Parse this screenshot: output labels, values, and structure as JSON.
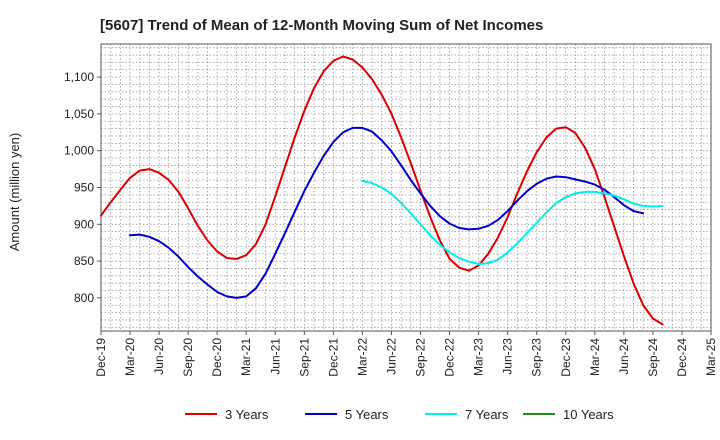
{
  "chart_data": {
    "type": "line",
    "title": "[5607]  Trend of Mean of 12-Month Moving Sum of Net Incomes",
    "xlabel": "",
    "ylabel": "Amount (million yen)",
    "ylim": [
      755,
      1145
    ],
    "yticks": [
      800,
      850,
      900,
      950,
      1000,
      1050,
      1100
    ],
    "ytick_labels": [
      "800",
      "850",
      "900",
      "950",
      "1,000",
      "1,050",
      "1,100"
    ],
    "x_ticks": [
      "Dec-19",
      "Mar-20",
      "Jun-20",
      "Sep-20",
      "Dec-20",
      "Mar-21",
      "Jun-21",
      "Sep-21",
      "Dec-21",
      "Mar-22",
      "Jun-22",
      "Sep-22",
      "Dec-22",
      "Mar-23",
      "Jun-23",
      "Sep-23",
      "Dec-23",
      "Mar-24",
      "Jun-24",
      "Sep-24",
      "Dec-24",
      "Mar-25"
    ],
    "grid": true,
    "legend_position": "bottom",
    "series": [
      {
        "name": "3 Years",
        "color": "#dd0000",
        "start_index": 0,
        "values": [
          912,
          930,
          947,
          963,
          973,
          975,
          970,
          960,
          944,
          922,
          898,
          878,
          863,
          854,
          853,
          858,
          873,
          900,
          938,
          978,
          1018,
          1054,
          1085,
          1108,
          1122,
          1128,
          1124,
          1113,
          1097,
          1076,
          1050,
          1018,
          983,
          946,
          910,
          878,
          853,
          841,
          837,
          844,
          860,
          882,
          910,
          942,
          972,
          998,
          1018,
          1030,
          1032,
          1024,
          1004,
          975,
          937,
          897,
          857,
          820,
          790,
          772,
          764
        ]
      },
      {
        "name": "5 Years",
        "color": "#0000cc",
        "start_index": 3,
        "values": [
          885,
          886,
          883,
          877,
          868,
          856,
          842,
          829,
          818,
          808,
          802,
          800,
          802,
          813,
          833,
          860,
          888,
          917,
          945,
          970,
          993,
          1012,
          1025,
          1031,
          1031,
          1026,
          1014,
          999,
          980,
          960,
          942,
          925,
          911,
          901,
          895,
          893,
          894,
          898,
          906,
          918,
          932,
          945,
          955,
          962,
          965,
          964,
          961,
          958,
          954,
          947,
          937,
          926,
          918,
          915
        ]
      },
      {
        "name": "7 Years",
        "color": "#00eeee",
        "start_index": 27,
        "values": [
          959,
          956,
          950,
          941,
          929,
          915,
          900,
          885,
          872,
          862,
          854,
          849,
          846,
          847,
          852,
          862,
          874,
          888,
          902,
          916,
          929,
          937,
          942,
          944,
          944,
          942,
          939,
          934,
          928,
          925,
          924,
          925
        ]
      },
      {
        "name": "10 Years",
        "color": "#228b22",
        "start_index": 0,
        "values": []
      }
    ]
  }
}
